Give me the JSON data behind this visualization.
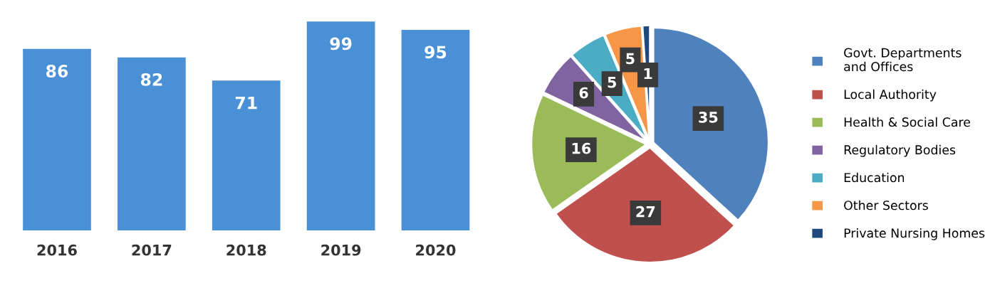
{
  "chart_data": [
    {
      "type": "bar",
      "categories": [
        "2016",
        "2017",
        "2018",
        "2019",
        "2020"
      ],
      "values": [
        86,
        82,
        71,
        99,
        95
      ],
      "color": "#4a90d6",
      "data_labels": true,
      "tick_labels": "x",
      "grid": false
    },
    {
      "type": "pie",
      "categories": [
        "Govt. Departments and Offices",
        "Local Authority",
        "Health & Social Care",
        "Regulatory Bodies",
        "Education",
        "Other Sectors",
        "Private Nursing Homes"
      ],
      "values": [
        35,
        27,
        16,
        6,
        5,
        5,
        1
      ],
      "colors": [
        "#4f81bd",
        "#c0504d",
        "#9bbb59",
        "#8064a2",
        "#4bacc6",
        "#f79646",
        "#1f497d"
      ],
      "data_labels": true,
      "legend": "right"
    }
  ]
}
